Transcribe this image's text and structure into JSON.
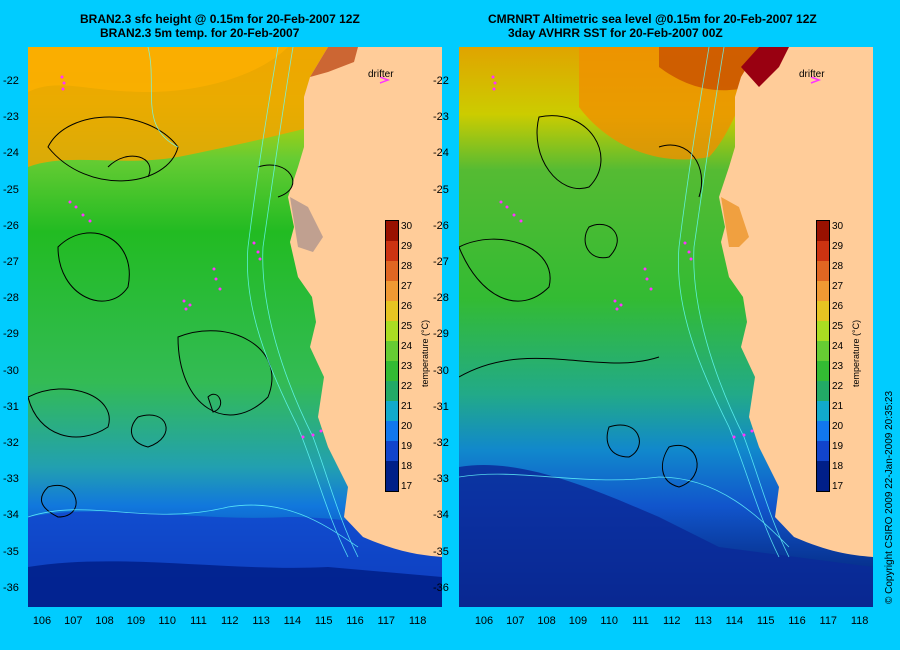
{
  "left_panel": {
    "title_line1": "BRAN2.3 sfc height @ 0.15m for 20-Feb-2007 12Z",
    "title_line2": "BRAN2.3 5m temp. for 20-Feb-2007",
    "drifter_label": "drifter",
    "colorbar_title": "temperature (°C)"
  },
  "right_panel": {
    "title_line1": "CMRNRT Altimetric sea level  @0.15m  for 20-Feb-2007 12Z",
    "title_line2": "3day AVHRR SST for 20-Feb-2007 00Z",
    "drifter_label": "drifter",
    "colorbar_title": "temperature (°C)"
  },
  "lat_labels": [
    "-22",
    "-23",
    "-24",
    "-25",
    "-26",
    "-27",
    "-28",
    "-29",
    "-30",
    "-31",
    "-32",
    "-33",
    "-34",
    "-35",
    "-36"
  ],
  "lon_labels": [
    "106",
    "107",
    "108",
    "109",
    "110",
    "111",
    "112",
    "113",
    "114",
    "115",
    "116",
    "117",
    "118"
  ],
  "colorbar_ticks": [
    "30",
    "29",
    "28",
    "27",
    "26",
    "25",
    "24",
    "23",
    "22",
    "21",
    "20",
    "19",
    "18",
    "17"
  ],
  "colors": {
    "background": "#00ccff",
    "land": "#ffcc99",
    "drifter": "#ff33ff"
  },
  "copyright": "© Copyright CSIRO 2009   22-Jan-2009 20:35:23"
}
